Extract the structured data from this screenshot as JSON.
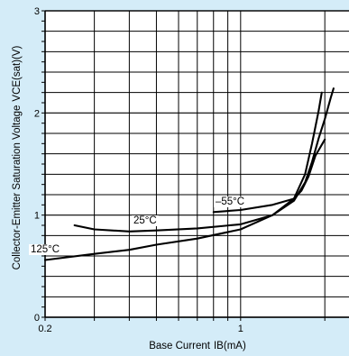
{
  "chart_data": {
    "type": "line",
    "title": "",
    "xlabel": "Base Current",
    "xlabel_symbol": "IB",
    "xlabel_unit": "(mA)",
    "ylabel": "Collector-Emitter Saturation Voltage",
    "ylabel_symbol": "VCE(sat)",
    "ylabel_unit": "(V)",
    "x_scale": "log",
    "xlim": [
      0.2,
      2.0
    ],
    "ylim": [
      0,
      3
    ],
    "x_tick_labels": [
      "0.2",
      "1"
    ],
    "y_tick_labels": [
      "0",
      "1",
      "2",
      "3"
    ],
    "grid": true,
    "colors": {
      "background": "#d4ecf8",
      "plot_area": "#ffffff",
      "grid": "#000000",
      "curve": "#000000"
    },
    "series": [
      {
        "name": "125°C",
        "points": [
          [
            0.2,
            0.56
          ],
          [
            0.3,
            0.62
          ],
          [
            0.4,
            0.66
          ],
          [
            0.5,
            0.71
          ],
          [
            0.7,
            0.77
          ],
          [
            1.0,
            0.86
          ],
          [
            1.3,
            1.0
          ],
          [
            1.55,
            1.16
          ],
          [
            1.7,
            1.4
          ],
          [
            1.8,
            1.7
          ],
          [
            1.9,
            2.02
          ],
          [
            1.95,
            2.2
          ]
        ]
      },
      {
        "name": "25°C",
        "points": [
          [
            0.255,
            0.9
          ],
          [
            0.3,
            0.86
          ],
          [
            0.4,
            0.84
          ],
          [
            0.5,
            0.85
          ],
          [
            0.7,
            0.87
          ],
          [
            1.0,
            0.91
          ],
          [
            1.3,
            1.0
          ],
          [
            1.55,
            1.14
          ],
          [
            1.7,
            1.32
          ],
          [
            1.8,
            1.52
          ],
          [
            1.9,
            1.75
          ],
          [
            2.0,
            1.94
          ],
          [
            2.1,
            2.15
          ],
          [
            2.15,
            2.24
          ]
        ]
      },
      {
        "name": "–55°C",
        "points": [
          [
            0.8,
            1.03
          ],
          [
            1.0,
            1.05
          ],
          [
            1.3,
            1.1
          ],
          [
            1.55,
            1.16
          ],
          [
            1.65,
            1.24
          ],
          [
            1.75,
            1.38
          ],
          [
            1.85,
            1.58
          ],
          [
            2.0,
            1.74
          ]
        ]
      }
    ]
  }
}
